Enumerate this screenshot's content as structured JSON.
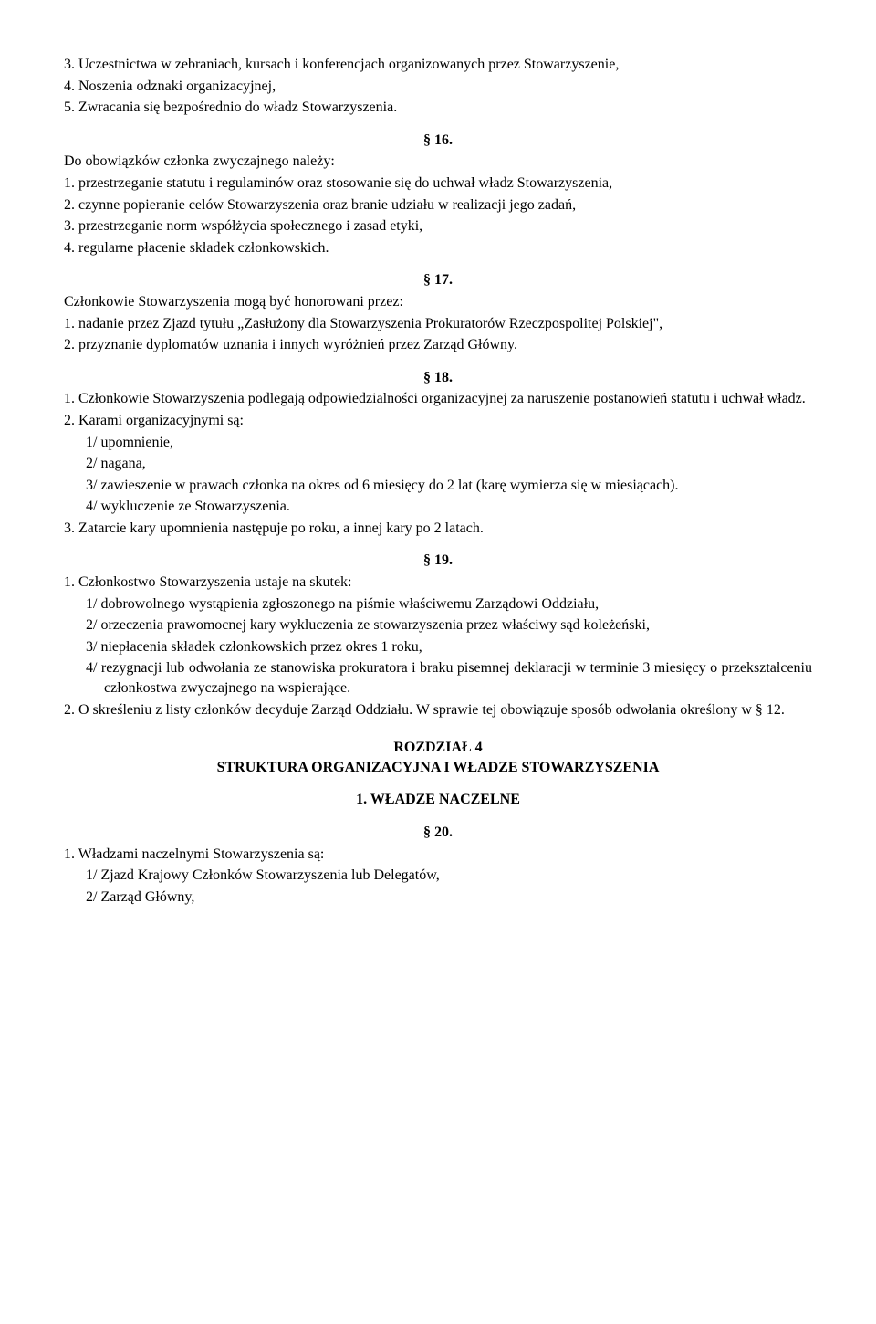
{
  "top": {
    "i3": "3.  Uczestnictwa w zebraniach, kursach i konferencjach organizowanych przez Stowarzyszenie,",
    "i4": "4.  Noszenia odznaki organizacyjnej,",
    "i5": "5.  Zwracania się bezpośrednio do władz Stowarzyszenia."
  },
  "s16": {
    "num": "§ 16.",
    "intro": "Do obowiązków członka zwyczajnego należy:",
    "i1": "1.  przestrzeganie statutu i regulaminów oraz stosowanie się do uchwał władz Stowarzyszenia,",
    "i2": "2.  czynne popieranie celów Stowarzyszenia oraz branie udziału w realizacji jego zadań,",
    "i3": "3.  przestrzeganie norm współżycia społecznego i zasad etyki,",
    "i4": "4.  regularne płacenie składek członkowskich."
  },
  "s17": {
    "num": "§ 17.",
    "intro": "Członkowie Stowarzyszenia mogą być honorowani przez:",
    "i1": "1.  nadanie przez Zjazd tytułu „Zasłużony dla Stowarzyszenia Prokuratorów Rzeczpospolitej Polskiej\",",
    "i2": "2.  przyznanie dyplomatów uznania i innych wyróżnień przez Zarząd Główny."
  },
  "s18": {
    "num": "§ 18.",
    "i1": "1.  Członkowie Stowarzyszenia podlegają odpowiedzialności organizacyjnej za naruszenie postanowień statutu i uchwał władz.",
    "i2": "2.  Karami organizacyjnymi są:",
    "i2a": "1/ upomnienie,",
    "i2b": "2/ nagana,",
    "i2c": "3/ zawieszenie w prawach członka na okres od 6 miesięcy do 2 lat (karę wymierza się w miesiącach).",
    "i2d": "4/ wykluczenie ze Stowarzyszenia.",
    "i3": "3.  Zatarcie kary upomnienia następuje po roku, a innej kary po 2 latach."
  },
  "s19": {
    "num": "§ 19.",
    "i1": "1.  Członkostwo Stowarzyszenia ustaje na skutek:",
    "i1a": "1/ dobrowolnego wystąpienia zgłoszonego na piśmie właściwemu Zarządowi Oddziału,",
    "i1b": "2/ orzeczenia prawomocnej kary wykluczenia ze stowarzyszenia przez właściwy sąd koleżeński,",
    "i1c": "3/ niepłacenia składek członkowskich przez okres 1 roku,",
    "i1d": "4/ rezygnacji lub odwołania ze stanowiska prokuratora i braku pisemnej deklaracji w terminie 3 miesięcy o przekształceniu członkostwa zwyczajnego na wspierające.",
    "i2": "2.  O skreśleniu z listy członków decyduje Zarząd Oddziału. W sprawie tej obowiązuje sposób odwołania określony w §  12."
  },
  "chapter": {
    "num": "ROZDZIAŁ  4",
    "title": "STRUKTURA  ORGANIZACYJNA  I  WŁADZE  STOWARZYSZENIA",
    "sub": "1.  WŁADZE NACZELNE"
  },
  "s20": {
    "num": "§ 20.",
    "i1": "1.  Władzami naczelnymi Stowarzyszenia są:",
    "i1a": "1/ Zjazd Krajowy Członków Stowarzyszenia lub Delegatów,",
    "i1b": "2/ Zarząd Główny,"
  }
}
